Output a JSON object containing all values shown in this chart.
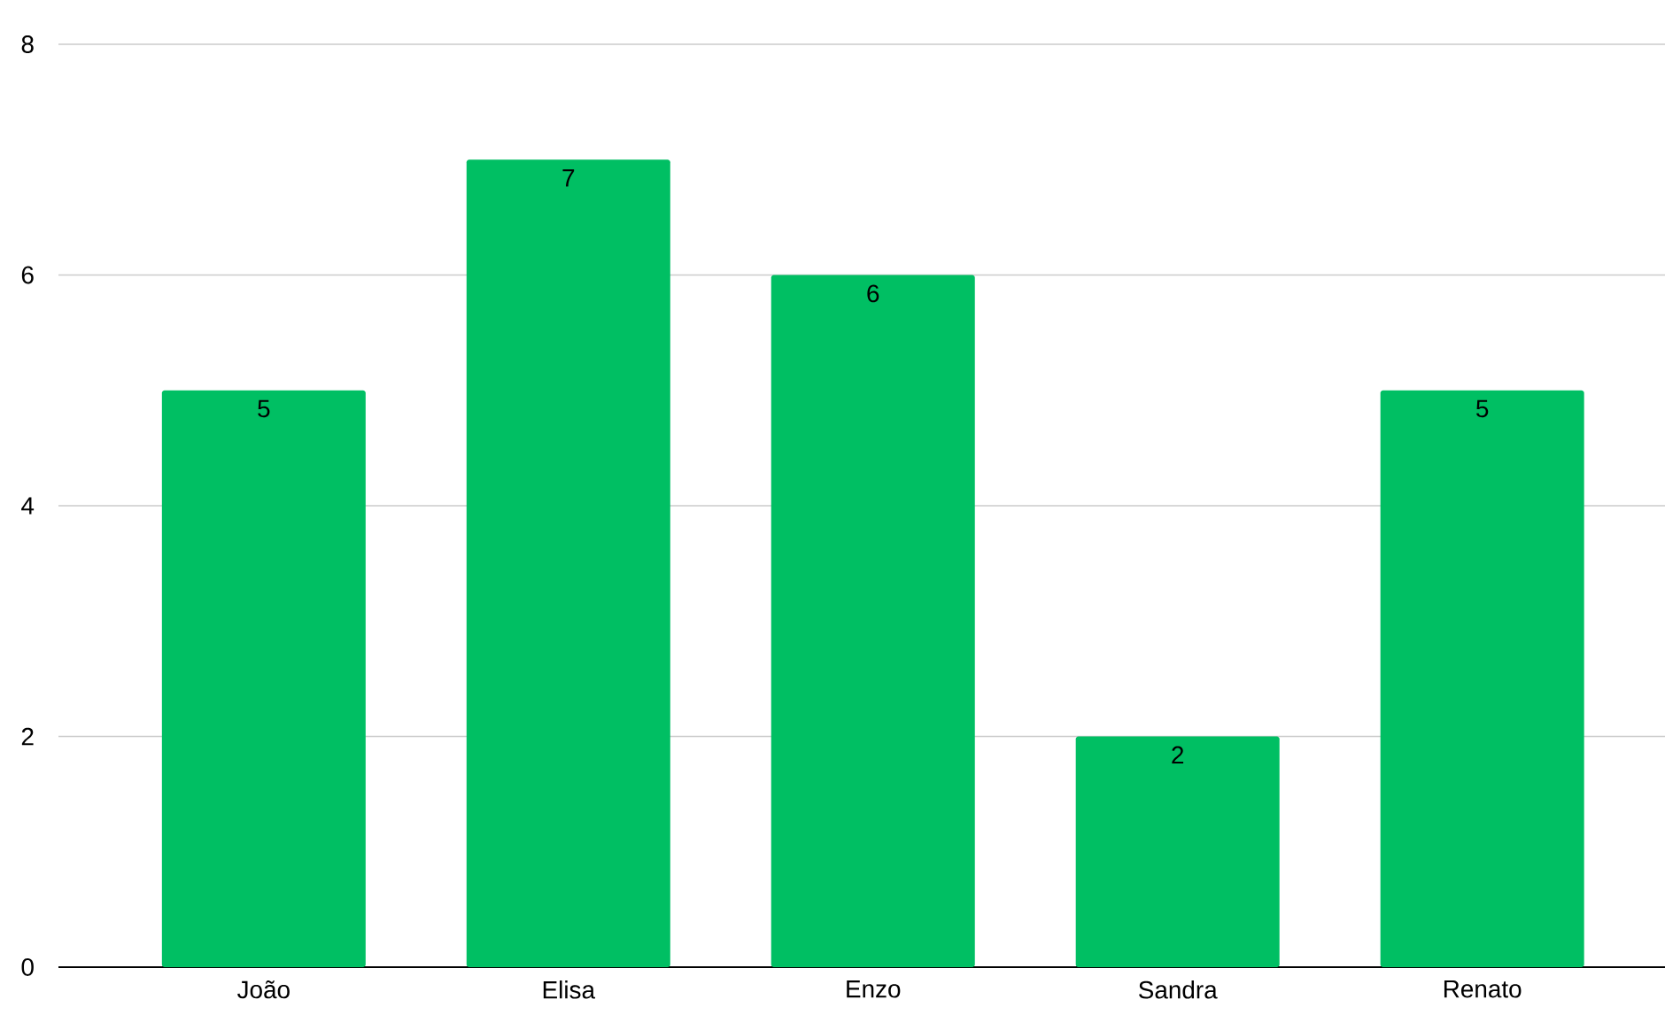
{
  "chart_data": {
    "type": "bar",
    "categories": [
      "João",
      "Elisa",
      "Enzo",
      "Sandra",
      "Renato"
    ],
    "values": [
      5,
      7,
      6,
      2,
      5
    ],
    "color": "#00bf63",
    "ylim": [
      0,
      8
    ],
    "yticks": [
      0,
      2,
      4,
      6,
      8
    ],
    "grid": "y",
    "data_labels": true
  }
}
